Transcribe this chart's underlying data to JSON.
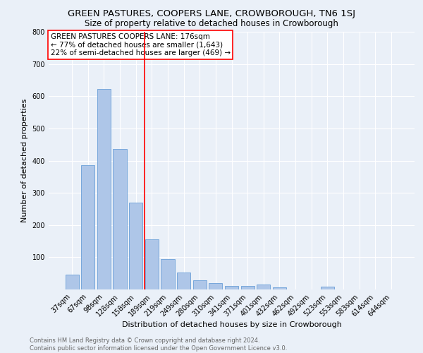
{
  "title": "GREEN PASTURES, COOPERS LANE, CROWBOROUGH, TN6 1SJ",
  "subtitle": "Size of property relative to detached houses in Crowborough",
  "xlabel": "Distribution of detached houses by size in Crowborough",
  "ylabel": "Number of detached properties",
  "footer_line1": "Contains HM Land Registry data © Crown copyright and database right 2024.",
  "footer_line2": "Contains public sector information licensed under the Open Government Licence v3.0.",
  "categories": [
    "37sqm",
    "67sqm",
    "98sqm",
    "128sqm",
    "158sqm",
    "189sqm",
    "219sqm",
    "249sqm",
    "280sqm",
    "310sqm",
    "341sqm",
    "371sqm",
    "401sqm",
    "432sqm",
    "462sqm",
    "492sqm",
    "523sqm",
    "553sqm",
    "583sqm",
    "614sqm",
    "644sqm"
  ],
  "values": [
    47,
    385,
    622,
    437,
    270,
    155,
    95,
    53,
    28,
    20,
    12,
    12,
    15,
    7,
    0,
    0,
    8,
    0,
    0,
    0,
    0
  ],
  "bar_color": "#aec6e8",
  "bar_edge_color": "#6a9fd8",
  "vline_x": 4.55,
  "vline_color": "red",
  "annotation_text": "GREEN PASTURES COOPERS LANE: 176sqm\n← 77% of detached houses are smaller (1,643)\n22% of semi-detached houses are larger (469) →",
  "annotation_box_color": "white",
  "annotation_box_edge_color": "red",
  "ylim": [
    0,
    800
  ],
  "yticks": [
    0,
    100,
    200,
    300,
    400,
    500,
    600,
    700,
    800
  ],
  "bg_color": "#eaf0f8",
  "plot_bg_color": "#eaf0f8",
  "grid_color": "white",
  "title_fontsize": 9.5,
  "subtitle_fontsize": 8.5,
  "tick_fontsize": 7,
  "ylabel_fontsize": 8,
  "xlabel_fontsize": 8,
  "annotation_fontsize": 7.5,
  "footer_fontsize": 6
}
